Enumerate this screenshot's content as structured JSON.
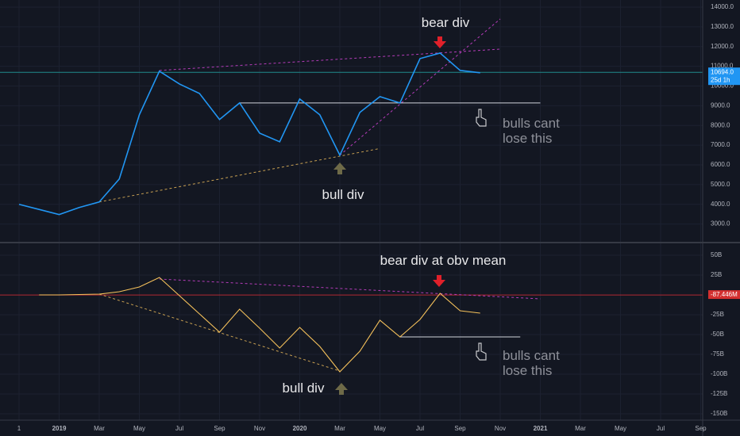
{
  "chart_data": [
    {
      "type": "line",
      "series": [
        {
          "color": "#2196f3",
          "values": [
            4000,
            3740,
            3480,
            3840,
            4120,
            5285,
            8540,
            10750,
            10100,
            9620,
            8300,
            9140,
            7610,
            7170,
            9340,
            8540,
            6490,
            8660,
            9460,
            9140,
            11390,
            11670,
            10790,
            10670,
            null,
            null,
            null,
            null,
            null,
            null,
            null,
            null,
            null,
            null,
            null
          ]
        }
      ],
      "ylim": [
        2100,
        14360
      ],
      "yticks": [
        {
          "value": 3000,
          "label": "3000.0"
        },
        {
          "value": 4000,
          "label": "4000.0"
        },
        {
          "value": 5000,
          "label": "5000.0"
        },
        {
          "value": 6000,
          "label": "6000.0"
        },
        {
          "value": 7000,
          "label": "7000.0"
        },
        {
          "value": 8000,
          "label": "8000.0"
        },
        {
          "value": 9000,
          "label": "9000.0"
        },
        {
          "value": 10000,
          "label": "10000.0"
        },
        {
          "value": 11000,
          "label": "11000.0"
        },
        {
          "value": 12000,
          "label": "12000.0"
        },
        {
          "value": 13000,
          "label": "13000.0"
        },
        {
          "value": 14000,
          "label": "14000.0"
        }
      ],
      "grid": true,
      "hline": {
        "value": 10694,
        "label": "10694.0",
        "sublabel": "25d 1h",
        "color": "#1f8a8c",
        "badge": "#2196f3"
      },
      "trendlines": [
        {
          "color": "#c8a052",
          "dash": true,
          "x": [
            4,
            17.9
          ],
          "y": [
            4120,
            6810
          ]
        },
        {
          "color": "#b53cba",
          "dash": true,
          "x": [
            7,
            24
          ],
          "y": [
            10790,
            11870
          ]
        },
        {
          "color": "#b53cba",
          "dash": true,
          "x": [
            16,
            24
          ],
          "y": [
            6490,
            13400
          ]
        },
        {
          "color": "#d1d4dc",
          "dash": false,
          "x": [
            11,
            26
          ],
          "y": [
            9140,
            9140
          ]
        }
      ],
      "annotations": [
        {
          "lines": [
            "bear div"
          ]
        },
        {
          "lines": [
            "bull div"
          ]
        },
        {
          "lines": [
            "bulls cant",
            "lose this"
          ]
        }
      ]
    },
    {
      "type": "line",
      "categories": [
        "1",
        null,
        "2019",
        null,
        "Mar",
        null,
        "May",
        null,
        "Jul",
        null,
        "Sep",
        null,
        "Nov",
        null,
        "2020",
        null,
        "Mar",
        null,
        "May",
        null,
        "Jul",
        null,
        "Sep",
        null,
        "Nov",
        null,
        "2021",
        null,
        "Mar",
        null,
        "May",
        null,
        "Jul",
        null,
        "Sep"
      ],
      "series": [
        {
          "color": "#f5c15b",
          "values": [
            null,
            0,
            0,
            0.5,
            1,
            4,
            10,
            22,
            -1,
            -24,
            -47,
            -18,
            -42,
            -67,
            -41,
            -65,
            -97,
            -71,
            -32,
            -53,
            -31,
            2,
            -20,
            -23,
            null,
            null,
            null,
            null,
            null,
            null,
            null,
            null,
            null,
            null,
            null
          ]
        }
      ],
      "ylim": [
        -158,
        65
      ],
      "yticks": [
        {
          "value": 50,
          "label": "50B"
        },
        {
          "value": 25,
          "label": "25B"
        },
        {
          "value": -25,
          "label": "-25B"
        },
        {
          "value": -50,
          "label": "-50B"
        },
        {
          "value": -75,
          "label": "-75B"
        },
        {
          "value": -100,
          "label": "-100B"
        },
        {
          "value": -125,
          "label": "-125B"
        },
        {
          "value": -150,
          "label": "-150B"
        }
      ],
      "grid": true,
      "hline": {
        "value": -0.087446,
        "label": "-87.446M",
        "color": "#b22833",
        "badge": "#d32f2f"
      },
      "trendlines": [
        {
          "color": "#b53cba",
          "dash": true,
          "x": [
            7,
            26
          ],
          "y": [
            20,
            -5
          ]
        },
        {
          "color": "#c8a052",
          "dash": true,
          "x": [
            4,
            16
          ],
          "y": [
            1,
            -96
          ]
        },
        {
          "color": "#d1d4dc",
          "dash": false,
          "x": [
            19,
            25
          ],
          "y": [
            -53,
            -53
          ]
        }
      ],
      "annotations": [
        {
          "lines": [
            "bear div at obv mean"
          ]
        },
        {
          "lines": [
            "bull div"
          ]
        },
        {
          "lines": [
            "bulls cant",
            "lose this"
          ]
        }
      ]
    }
  ]
}
